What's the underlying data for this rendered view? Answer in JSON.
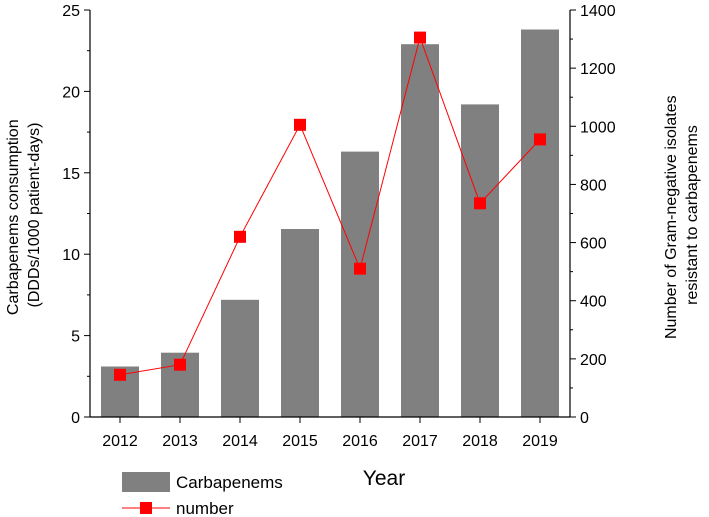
{
  "chart_data": {
    "type": "bar",
    "categories": [
      "2012",
      "2013",
      "2014",
      "2015",
      "2016",
      "2017",
      "2018",
      "2019"
    ],
    "series": [
      {
        "name": "Carbapenems",
        "type": "bar",
        "axis": "left",
        "values": [
          3.1,
          3.95,
          7.2,
          11.55,
          16.3,
          22.9,
          19.2,
          23.8
        ],
        "color": "#808080"
      },
      {
        "name": "number",
        "type": "line",
        "axis": "right",
        "values": [
          145,
          180,
          620,
          1005,
          510,
          1305,
          735,
          955
        ],
        "color": "#ff0000"
      }
    ],
    "xlabel": "Year",
    "ylabel_left": "Carbapenems consumption (DDDs/1000 patient-days)",
    "ylabel_left_lines": [
      "Carbapenems consumption",
      "(DDDs/1000 patient-days)"
    ],
    "ylabel_right": "Number of Gram-negative isolates resistant to carbapenems",
    "ylabel_right_lines": [
      "Number of Gram-negative isolates",
      "resistant to carbapenems"
    ],
    "ylim_left": [
      0,
      25
    ],
    "yticks_left": [
      "0",
      "5",
      "10",
      "15",
      "20",
      "25"
    ],
    "ylim_right": [
      0,
      1400
    ],
    "yticks_right": [
      "0",
      "200",
      "400",
      "600",
      "800",
      "1000",
      "1200",
      "1400"
    ],
    "grid": false,
    "legend_position": "bottom-left"
  }
}
